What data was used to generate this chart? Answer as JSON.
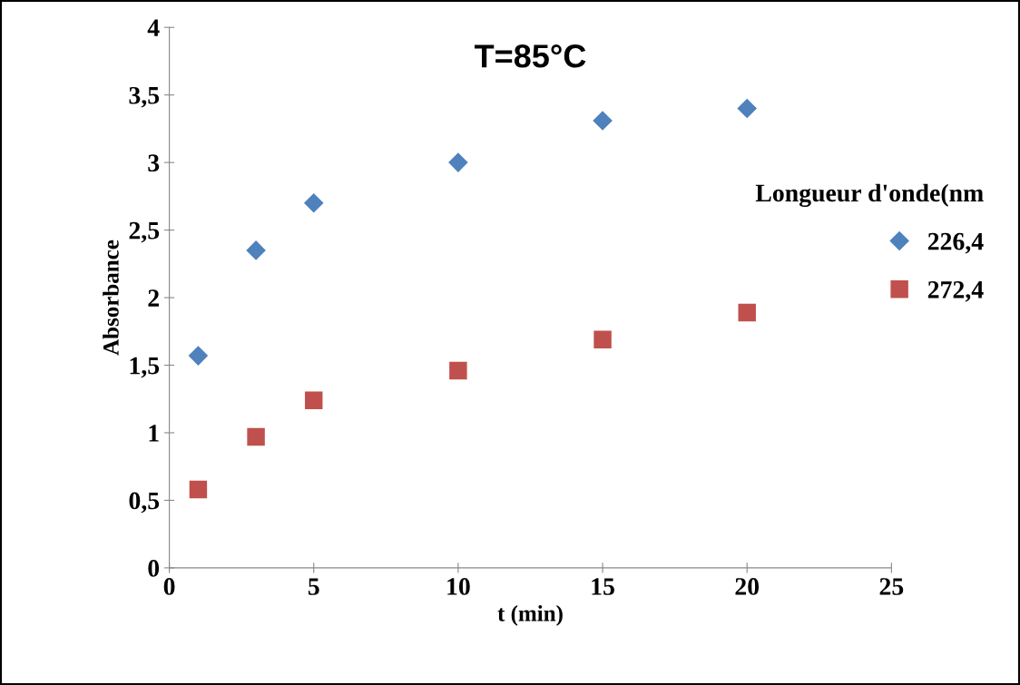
{
  "chart_data": {
    "type": "scatter",
    "title": "T=85°C",
    "xlabel": "t (min)",
    "ylabel": "Absorbance",
    "legend_title": "Longueur d'onde(nm",
    "x": [
      1,
      3,
      5,
      10,
      15,
      20
    ],
    "series": [
      {
        "name": "226,4",
        "color": "#4f81bd",
        "marker": "diamond",
        "values": [
          1.57,
          2.35,
          2.7,
          3.0,
          3.31,
          3.4
        ]
      },
      {
        "name": "272,4",
        "color": "#c0504d",
        "marker": "square",
        "values": [
          0.58,
          0.97,
          1.24,
          1.46,
          1.69,
          1.89
        ]
      }
    ],
    "xlim": [
      0,
      25
    ],
    "xticks": [
      0,
      5,
      10,
      15,
      20,
      25
    ],
    "ylim": [
      0,
      4
    ],
    "yticks": [
      0,
      {
        "value": 0.5,
        "label": "0,5"
      },
      1,
      {
        "value": 1.5,
        "label": "1,5"
      },
      2,
      {
        "value": 2.5,
        "label": "2,5"
      },
      3,
      {
        "value": 3.5,
        "label": "3,5"
      },
      4
    ],
    "grid": false,
    "legend": "right"
  }
}
